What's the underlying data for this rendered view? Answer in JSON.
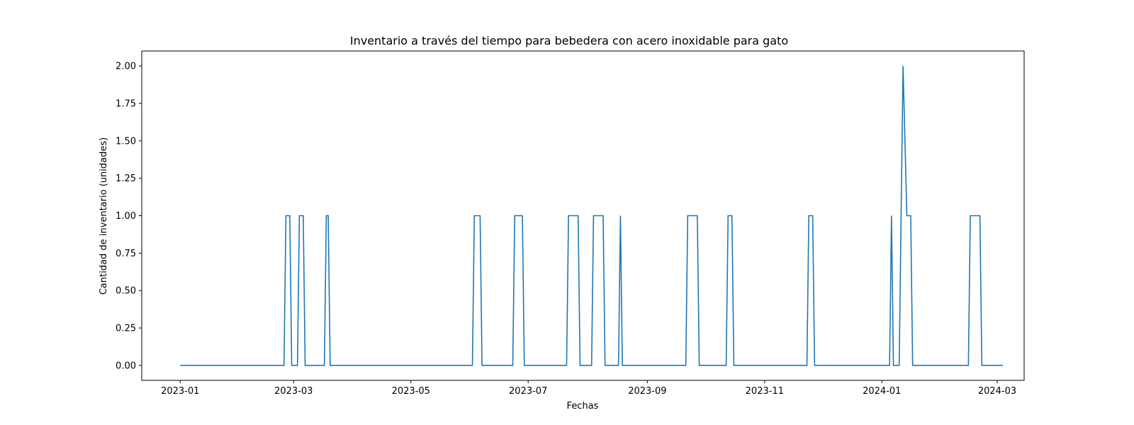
{
  "chart_data": {
    "type": "line",
    "title": "Inventario a través del tiempo para bebedera con acero inoxidable para gato",
    "xlabel": "Fechas",
    "ylabel": "Cantidad de inventario (unidades)",
    "x_tick_labels": [
      "2023-01",
      "2023-03",
      "2023-05",
      "2023-07",
      "2023-09",
      "2023-11",
      "2024-01",
      "2024-03"
    ],
    "x_tick_dates": [
      "2023-01-01",
      "2023-03-01",
      "2023-05-01",
      "2023-07-01",
      "2023-09-01",
      "2023-11-01",
      "2024-01-01",
      "2024-03-01"
    ],
    "y_tick_labels": [
      "0.00",
      "0.25",
      "0.50",
      "0.75",
      "1.00",
      "1.25",
      "1.50",
      "1.75",
      "2.00"
    ],
    "xlim": [
      "2022-12-12",
      "2024-03-15"
    ],
    "ylim": [
      -0.1,
      2.1
    ],
    "grid": false,
    "series": [
      {
        "color": "#1f77b4",
        "points": [
          [
            "2023-01-01",
            0
          ],
          [
            "2023-02-24",
            0
          ],
          [
            "2023-02-25",
            1
          ],
          [
            "2023-02-27",
            1
          ],
          [
            "2023-02-28",
            0
          ],
          [
            "2023-03-03",
            0
          ],
          [
            "2023-03-04",
            1
          ],
          [
            "2023-03-06",
            1
          ],
          [
            "2023-03-07",
            0
          ],
          [
            "2023-03-17",
            0
          ],
          [
            "2023-03-18",
            1
          ],
          [
            "2023-03-19",
            1
          ],
          [
            "2023-03-20",
            0
          ],
          [
            "2023-06-02",
            0
          ],
          [
            "2023-06-03",
            1
          ],
          [
            "2023-06-06",
            1
          ],
          [
            "2023-06-07",
            0
          ],
          [
            "2023-06-23",
            0
          ],
          [
            "2023-06-24",
            1
          ],
          [
            "2023-06-28",
            1
          ],
          [
            "2023-06-29",
            0
          ],
          [
            "2023-07-21",
            0
          ],
          [
            "2023-07-22",
            1
          ],
          [
            "2023-07-27",
            1
          ],
          [
            "2023-07-28",
            0
          ],
          [
            "2023-08-03",
            0
          ],
          [
            "2023-08-04",
            1
          ],
          [
            "2023-08-09",
            1
          ],
          [
            "2023-08-10",
            0
          ],
          [
            "2023-08-17",
            0
          ],
          [
            "2023-08-18",
            1
          ],
          [
            "2023-08-19",
            0
          ],
          [
            "2023-09-21",
            0
          ],
          [
            "2023-09-22",
            1
          ],
          [
            "2023-09-27",
            1
          ],
          [
            "2023-09-28",
            0
          ],
          [
            "2023-10-12",
            0
          ],
          [
            "2023-10-13",
            1
          ],
          [
            "2023-10-15",
            1
          ],
          [
            "2023-10-16",
            0
          ],
          [
            "2023-11-23",
            0
          ],
          [
            "2023-11-24",
            1
          ],
          [
            "2023-11-26",
            1
          ],
          [
            "2023-11-27",
            0
          ],
          [
            "2024-01-05",
            0
          ],
          [
            "2024-01-06",
            1
          ],
          [
            "2024-01-07",
            0
          ],
          [
            "2024-01-10",
            0
          ],
          [
            "2024-01-12",
            2
          ],
          [
            "2024-01-14",
            1
          ],
          [
            "2024-01-16",
            1
          ],
          [
            "2024-01-17",
            0
          ],
          [
            "2024-02-15",
            0
          ],
          [
            "2024-02-16",
            1
          ],
          [
            "2024-02-21",
            1
          ],
          [
            "2024-02-22",
            0
          ],
          [
            "2024-03-04",
            0
          ]
        ]
      }
    ]
  }
}
